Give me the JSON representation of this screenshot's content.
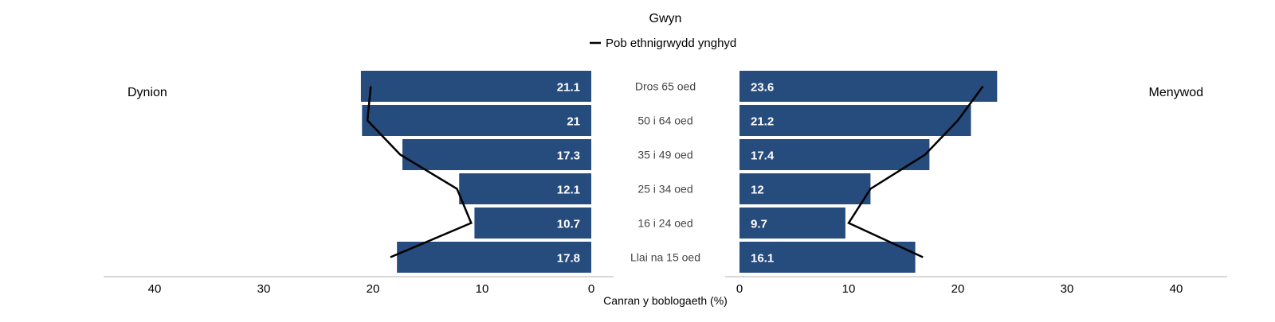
{
  "chart_data": {
    "type": "bar",
    "title": "Gwyn",
    "xlabel": "Canran y boblogaeth (%)",
    "xlim": [
      0,
      40
    ],
    "x_ticks": [
      40,
      30,
      20,
      10,
      0
    ],
    "categories": [
      "Dros 65 oed",
      "50 i 64 oed",
      "35 i 49 oed",
      "25 i 34 oed",
      "16 i 24 oed",
      "Llai na 15 oed"
    ],
    "left_group_label": "Dynion",
    "right_group_label": "Menywod",
    "series": [
      {
        "name": "Dynion",
        "values": [
          21.1,
          21,
          17.3,
          12.1,
          10.7,
          17.8
        ],
        "value_labels": [
          "21.1",
          "21",
          "17.3",
          "12.1",
          "10.7",
          "17.8"
        ]
      },
      {
        "name": "Menywod",
        "values": [
          23.6,
          21.2,
          17.4,
          12,
          9.7,
          16.1
        ],
        "value_labels": [
          "23.6",
          "21.2",
          "17.4",
          "12",
          "9.7",
          "16.1"
        ]
      }
    ],
    "reference_line": {
      "name": "Pob ethnigrwydd ynghyd",
      "left_values": [
        20.2,
        20.5,
        17.5,
        12.3,
        11.0,
        18.4
      ],
      "right_values": [
        22.3,
        20.0,
        17.0,
        12.0,
        10.0,
        16.8
      ]
    },
    "colors": {
      "bar": "#264b7d",
      "line": "#000000",
      "axis": "#cccccc"
    },
    "legend_position": "top-center",
    "grid": false
  }
}
